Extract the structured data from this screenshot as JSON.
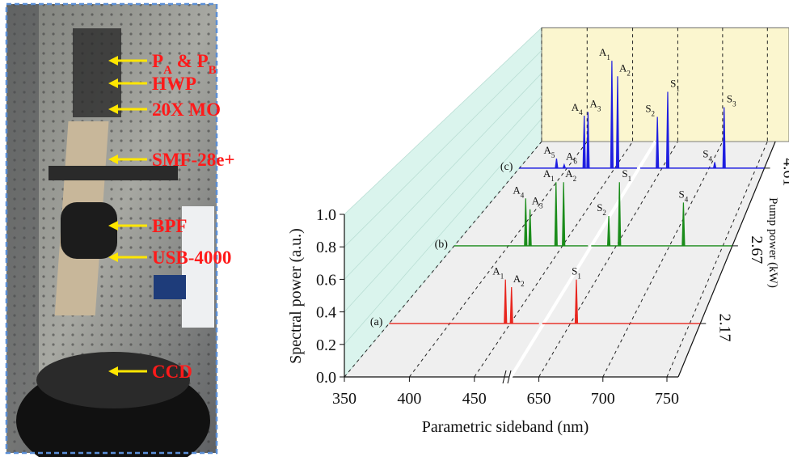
{
  "setup": {
    "labels": [
      [
        {
          "t": "P"
        },
        {
          "sub": "A"
        },
        {
          "t": " & P"
        },
        {
          "sub": "B"
        }
      ],
      [
        {
          "t": "HWP"
        }
      ],
      [
        {
          "t": "20X MO"
        }
      ],
      [
        {
          "t": "SMF-28e+"
        }
      ],
      [
        {
          "t": "BPF"
        }
      ],
      [
        {
          "t": "USB-4000"
        }
      ],
      [
        {
          "t": "CCD"
        }
      ]
    ]
  },
  "chart_data": {
    "type": "waterfall",
    "xlabel": "Parametric sideband (nm)",
    "ylabel": "Spectral power (a.u.)",
    "zlabel": "Pump power (kW)",
    "xlim": [
      350,
      750
    ],
    "xbreak": [
      475,
      625
    ],
    "xticks": [
      350,
      400,
      450,
      650,
      700,
      750
    ],
    "ylim": [
      0,
      1
    ],
    "yticks": [
      {
        "value": 0,
        "label": "0.0"
      },
      0.2,
      0.4,
      0.6,
      0.8,
      {
        "value": 1,
        "label": "1.0"
      }
    ],
    "zticks": [
      2.17,
      2.67,
      4.61
    ],
    "series": [
      {
        "name": "(a)",
        "color": "#e8261f",
        "x": [
          446,
          451,
          655
        ],
        "values": [
          0.29,
          0.24,
          0.29
        ],
        "labels": [
          [
            "A",
            "1"
          ],
          [
            "A",
            "2"
          ],
          [
            "S",
            "1"
          ]
        ]
      },
      {
        "name": "(b)",
        "color": "#1a8c1a",
        "x": [
          416,
          420,
          444,
          451,
          643,
          653,
          713
        ],
        "values": [
          0.35,
          0.27,
          0.47,
          0.47,
          0.22,
          0.47,
          0.32
        ],
        "labels": [
          [
            "A",
            "4"
          ],
          [
            "A",
            "3"
          ],
          [
            "A",
            "1"
          ],
          [
            "A",
            "2"
          ],
          [
            "S",
            "2"
          ],
          [
            "S",
            "1"
          ],
          [
            "S",
            "4"
          ]
        ]
      },
      {
        "name": "(c)",
        "color": "#1f1fe0",
        "x": [
          389,
          397,
          418,
          422,
          447,
          453,
          645,
          656,
          706,
          716
        ],
        "values": [
          0.08,
          0.03,
          0.44,
          0.47,
          0.9,
          0.77,
          0.43,
          0.64,
          0.05,
          0.51
        ],
        "labels": [
          [
            "A",
            "5"
          ],
          [
            "A",
            "6"
          ],
          [
            "A",
            "4"
          ],
          [
            "A",
            "3"
          ],
          [
            "A",
            "1"
          ],
          [
            "A",
            "2"
          ],
          [
            "S",
            "2"
          ],
          [
            "S",
            "1"
          ],
          [
            "S",
            "4"
          ],
          [
            "S",
            "3"
          ]
        ]
      }
    ]
  }
}
